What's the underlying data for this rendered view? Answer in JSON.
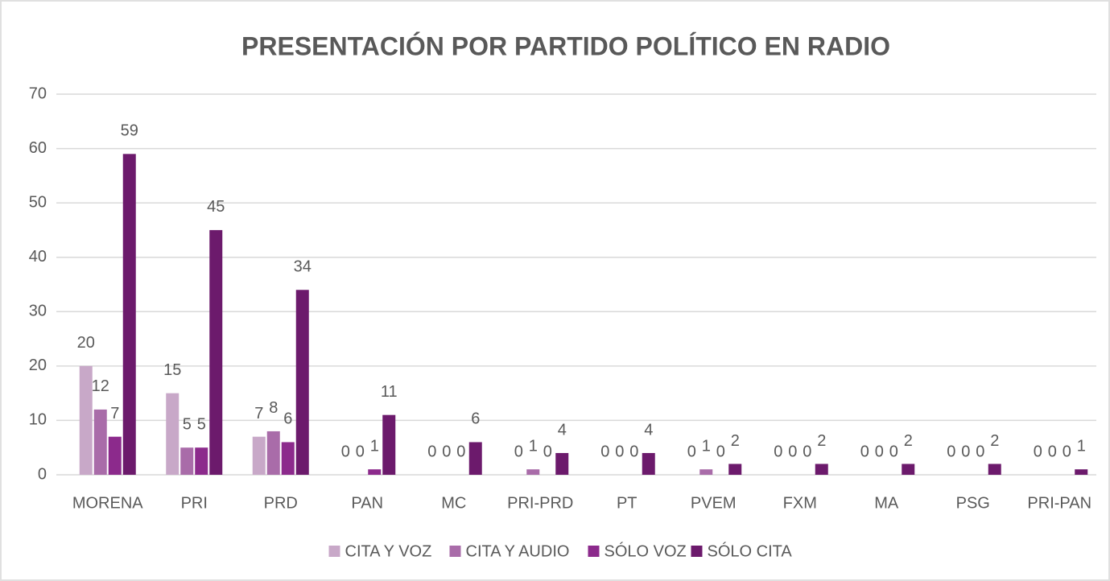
{
  "chart_data": {
    "type": "bar",
    "title": "PRESENTACIÓN POR PARTIDO POLÍTICO EN RADIO",
    "categories": [
      "MORENA",
      "PRI",
      "PRD",
      "PAN",
      "MC",
      "PRI-PRD",
      "PT",
      "PVEM",
      "FXM",
      "MA",
      "PSG",
      "PRI-PAN"
    ],
    "series": [
      {
        "name": "CITA Y VOZ",
        "color": "#c8a8c8",
        "values": [
          20,
          15,
          7,
          0,
          0,
          0,
          0,
          0,
          0,
          0,
          0,
          0
        ]
      },
      {
        "name": "CITA Y AUDIO",
        "color": "#a96ca9",
        "values": [
          12,
          5,
          8,
          0,
          0,
          1,
          0,
          1,
          0,
          0,
          0,
          0
        ]
      },
      {
        "name": "SÓLO VOZ",
        "color": "#8c2a8c",
        "values": [
          7,
          5,
          6,
          1,
          0,
          0,
          0,
          0,
          0,
          0,
          0,
          0
        ]
      },
      {
        "name": "SÓLO CITA",
        "color": "#6c1a6c",
        "values": [
          59,
          45,
          34,
          11,
          6,
          4,
          4,
          2,
          2,
          2,
          2,
          1
        ]
      }
    ],
    "ylim": [
      0,
      70
    ],
    "yticks": [
      0,
      10,
      20,
      30,
      40,
      50,
      60,
      70
    ],
    "grid": true,
    "legend": "bottom"
  }
}
